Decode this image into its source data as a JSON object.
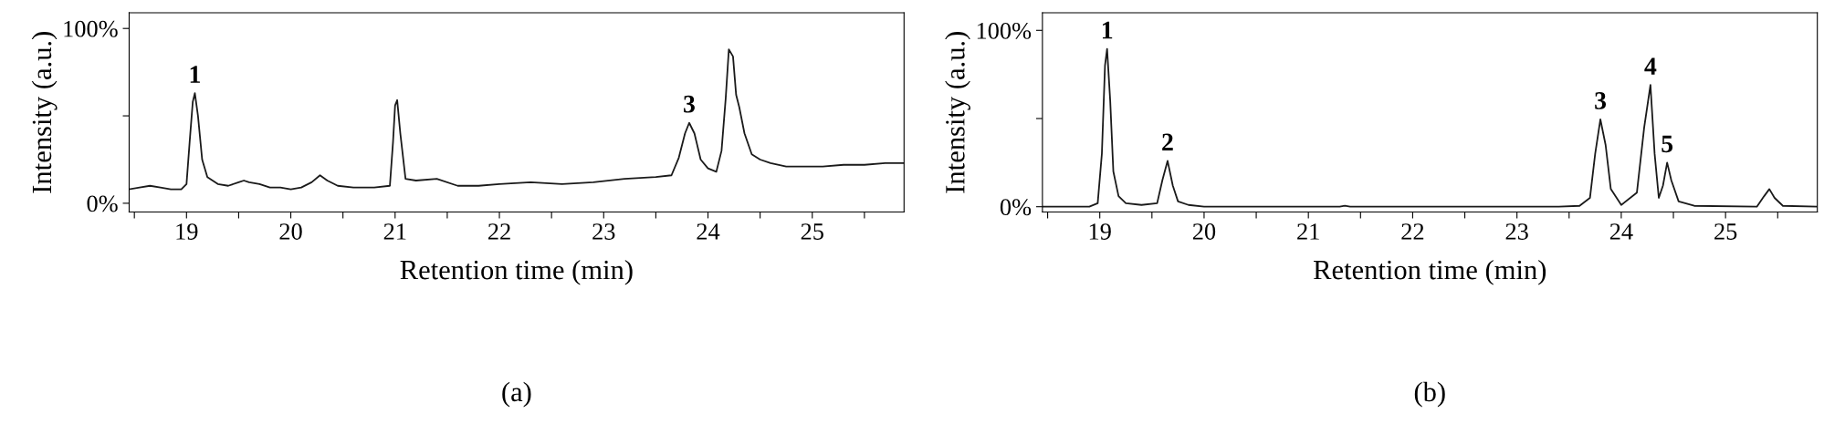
{
  "chart_data": [
    {
      "type": "line",
      "xlabel": "Retention time (min)",
      "ylabel": "Intensity (a.u.)",
      "xlim": [
        18.45,
        25.88
      ],
      "ylim": [
        -5,
        109
      ],
      "xticks": [
        {
          "value": 18.5,
          "label": null
        },
        19,
        {
          "value": 19.5,
          "label": null
        },
        20,
        {
          "value": 20.5,
          "label": null
        },
        21,
        {
          "value": 21.5,
          "label": null
        },
        22,
        {
          "value": 22.5,
          "label": null
        },
        23,
        {
          "value": 23.5,
          "label": null
        },
        24,
        {
          "value": 24.5,
          "label": null
        },
        25,
        {
          "value": 25.5,
          "label": null
        }
      ],
      "yticks": [
        {
          "value": 0,
          "label": "0%"
        },
        {
          "value": 50,
          "label": null
        },
        {
          "value": 100,
          "label": "100%"
        }
      ],
      "grid": false,
      "legend": false,
      "marker": "none",
      "line_style": "solid",
      "series": [
        {
          "color": "#1a1a1a",
          "x": [
            18.45,
            18.55,
            18.65,
            18.75,
            18.85,
            18.95,
            19.0,
            19.03,
            19.06,
            19.08,
            19.11,
            19.15,
            19.2,
            19.3,
            19.4,
            19.5,
            19.55,
            19.6,
            19.7,
            19.8,
            19.9,
            20.0,
            20.1,
            20.2,
            20.28,
            20.35,
            20.45,
            20.6,
            20.8,
            20.95,
            20.98,
            21.0,
            21.02,
            21.05,
            21.1,
            21.2,
            21.4,
            21.6,
            21.8,
            22.0,
            22.3,
            22.6,
            22.9,
            23.2,
            23.5,
            23.65,
            23.72,
            23.78,
            23.82,
            23.87,
            23.93,
            24.0,
            24.08,
            24.13,
            24.17,
            24.2,
            24.24,
            24.27,
            24.3,
            24.35,
            24.42,
            24.5,
            24.6,
            24.75,
            24.9,
            25.1,
            25.3,
            25.5,
            25.7,
            25.88
          ],
          "values": [
            8,
            9,
            10,
            9,
            8,
            8,
            11,
            35,
            58,
            63,
            50,
            25,
            15,
            11,
            10,
            12,
            13,
            12,
            11,
            9,
            9,
            8,
            9,
            12,
            16,
            13,
            10,
            9,
            9,
            10,
            35,
            56,
            59,
            40,
            14,
            13,
            14,
            10,
            10,
            11,
            12,
            11,
            12,
            14,
            15,
            16,
            26,
            40,
            46,
            40,
            25,
            20,
            18,
            30,
            60,
            88,
            84,
            62,
            55,
            40,
            28,
            25,
            23,
            21,
            21,
            21,
            22,
            22,
            23,
            23
          ]
        }
      ],
      "annotations": [
        {
          "text": "1",
          "x": 19.08,
          "y": 63
        },
        {
          "text": "3",
          "x": 23.82,
          "y": 46
        },
        "(a)"
      ]
    },
    {
      "type": "line",
      "xlabel": "Retention time (min)",
      "ylabel": "Intensity (a.u.)",
      "xlim": [
        18.45,
        25.88
      ],
      "ylim": [
        -3,
        110
      ],
      "xticks": [
        {
          "value": 18.5,
          "label": null
        },
        19,
        {
          "value": 19.5,
          "label": null
        },
        20,
        {
          "value": 20.5,
          "label": null
        },
        21,
        {
          "value": 21.5,
          "label": null
        },
        22,
        {
          "value": 22.5,
          "label": null
        },
        23,
        {
          "value": 23.5,
          "label": null
        },
        24,
        {
          "value": 24.5,
          "label": null
        },
        25,
        {
          "value": 25.5,
          "label": null
        }
      ],
      "yticks": [
        {
          "value": 0,
          "label": "0%"
        },
        {
          "value": 50,
          "label": null
        },
        {
          "value": 100,
          "label": "100%"
        }
      ],
      "grid": false,
      "legend": false,
      "marker": "none",
      "line_style": "solid",
      "series": [
        {
          "color": "#1a1a1a",
          "x": [
            18.45,
            18.9,
            18.98,
            19.02,
            19.05,
            19.07,
            19.1,
            19.13,
            19.18,
            19.25,
            19.4,
            19.55,
            19.6,
            19.65,
            19.7,
            19.75,
            19.85,
            20.0,
            21.3,
            21.35,
            21.4,
            23.4,
            23.6,
            23.7,
            23.75,
            23.8,
            23.85,
            23.9,
            24.0,
            24.15,
            24.22,
            24.28,
            24.32,
            24.36,
            24.4,
            24.44,
            24.48,
            24.55,
            24.7,
            25.3,
            25.37,
            25.42,
            25.47,
            25.55,
            25.88
          ],
          "values": [
            0,
            0,
            2,
            30,
            80,
            89.5,
            60,
            20,
            6,
            2,
            1,
            2,
            15,
            26,
            12,
            3,
            1,
            0,
            0,
            0.5,
            0,
            0,
            0.5,
            5,
            30,
            49.5,
            35,
            10,
            1,
            8,
            45,
            69,
            30,
            5,
            12,
            25,
            15,
            3,
            0.5,
            0,
            6,
            10,
            5,
            0.5,
            0
          ]
        }
      ],
      "annotations": [
        {
          "text": "1",
          "x": 19.07,
          "y": 89.5
        },
        {
          "text": "2",
          "x": 19.65,
          "y": 26
        },
        {
          "text": "3",
          "x": 23.8,
          "y": 49.5
        },
        {
          "text": "4",
          "x": 24.28,
          "y": 69
        },
        {
          "text": "5",
          "x": 24.44,
          "y": 25
        },
        "(b)"
      ]
    }
  ]
}
